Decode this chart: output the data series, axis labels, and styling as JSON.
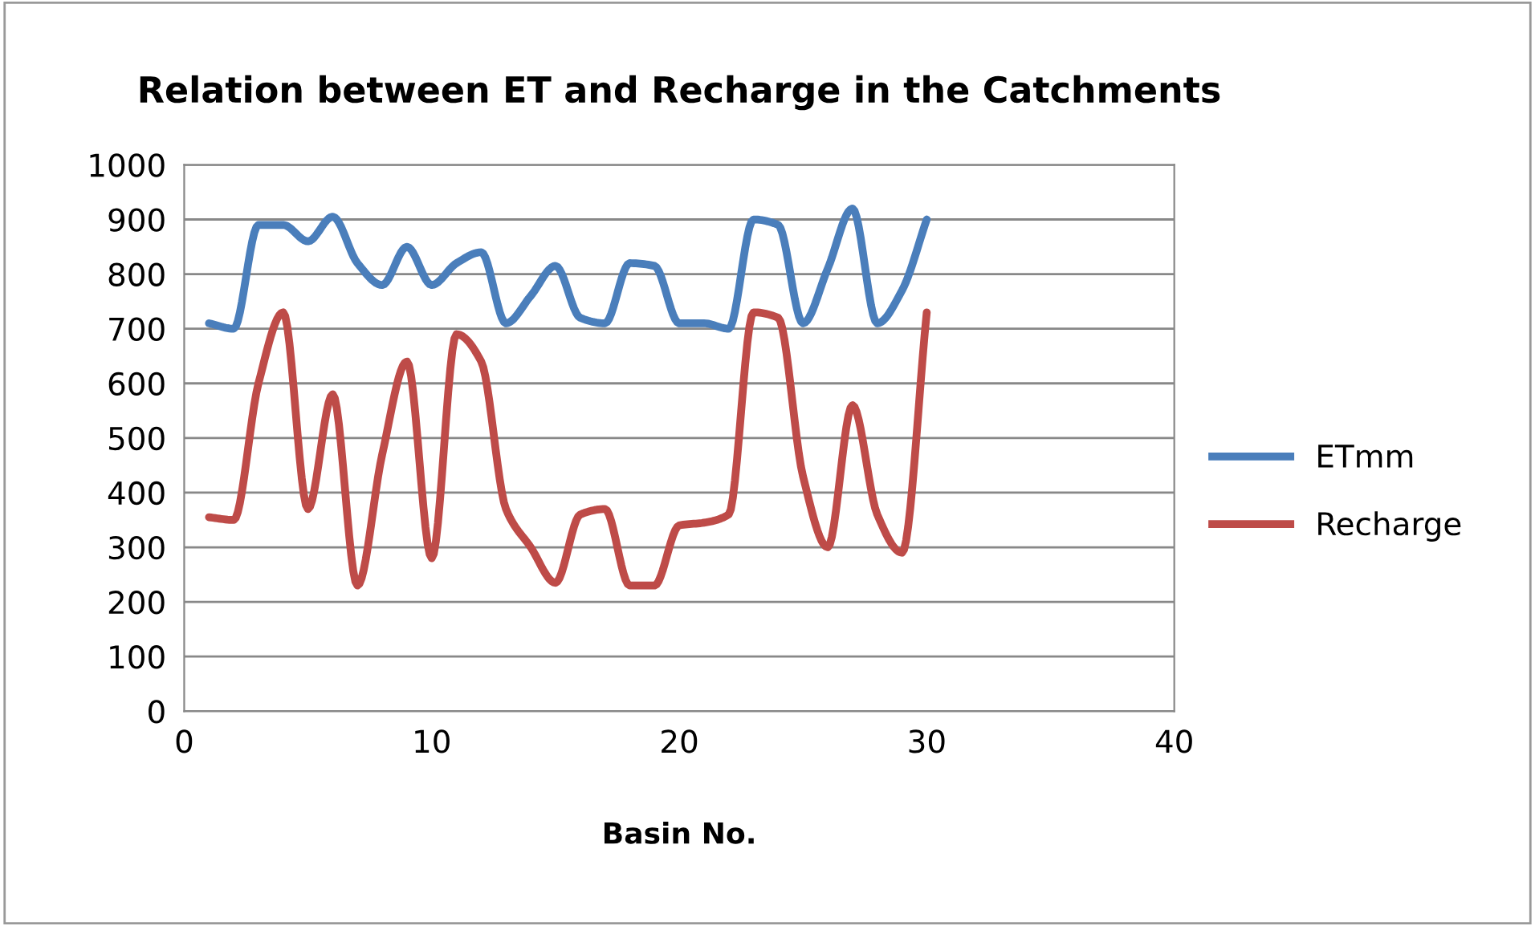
{
  "chart_data": {
    "type": "line",
    "title": "Relation between ET and Recharge in the Catchments",
    "xlabel": "Basin No.",
    "x": [
      1,
      2,
      3,
      4,
      5,
      6,
      7,
      8,
      9,
      10,
      11,
      12,
      13,
      14,
      15,
      16,
      17,
      18,
      19,
      20,
      21,
      22,
      23,
      24,
      25,
      26,
      27,
      28,
      29,
      30
    ],
    "series": [
      {
        "name": "ETmm",
        "color": "#4a7ebb",
        "values": [
          710,
          700,
          890,
          890,
          860,
          905,
          820,
          780,
          850,
          780,
          820,
          840,
          710,
          760,
          815,
          720,
          710,
          820,
          815,
          710,
          710,
          700,
          900,
          890,
          710,
          810,
          920,
          710,
          770,
          900
        ]
      },
      {
        "name": "Recharge",
        "color": "#be4b48",
        "values": [
          355,
          350,
          600,
          730,
          370,
          580,
          230,
          470,
          640,
          280,
          690,
          640,
          370,
          300,
          235,
          360,
          370,
          230,
          230,
          340,
          345,
          360,
          730,
          720,
          430,
          300,
          560,
          360,
          290,
          730
        ]
      }
    ],
    "xlim": [
      0,
      40
    ],
    "xticks": [
      0,
      10,
      20,
      30,
      40
    ],
    "ylim": [
      0,
      1000
    ],
    "yticks": [
      0,
      100,
      200,
      300,
      400,
      500,
      600,
      700,
      800,
      900,
      1000
    ],
    "grid": "y",
    "legend": "right",
    "marker": "none",
    "line_style": "solid"
  }
}
